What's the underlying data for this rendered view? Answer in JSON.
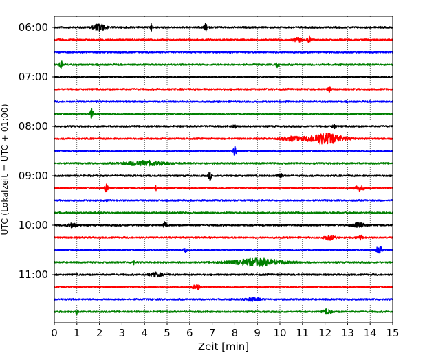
{
  "chart_data": {
    "type": "line",
    "title": "",
    "xlabel": "Zeit  [min]",
    "ylabel": "UTC (Lokalzeit = UTC + 01:00)",
    "xlim": [
      0,
      15
    ],
    "x_ticks": [
      "0",
      "1",
      "2",
      "3",
      "4",
      "5",
      "6",
      "7",
      "8",
      "9",
      "10",
      "11",
      "12",
      "13",
      "14",
      "15"
    ],
    "grid": "vertical-dotted",
    "y_tick_labels": [
      "06:00",
      "07:00",
      "08:00",
      "09:00",
      "10:00",
      "11:00"
    ],
    "traces_per_hour": 4,
    "trace_colors": [
      "#000000",
      "#ff0000",
      "#0000ff",
      "#008000"
    ],
    "series": [
      {
        "start": "06:00",
        "color": "#000000"
      },
      {
        "start": "06:15",
        "color": "#ff0000"
      },
      {
        "start": "06:30",
        "color": "#0000ff"
      },
      {
        "start": "06:45",
        "color": "#008000"
      },
      {
        "start": "07:00",
        "color": "#000000"
      },
      {
        "start": "07:15",
        "color": "#ff0000"
      },
      {
        "start": "07:30",
        "color": "#0000ff"
      },
      {
        "start": "07:45",
        "color": "#008000"
      },
      {
        "start": "08:00",
        "color": "#000000"
      },
      {
        "start": "08:15",
        "color": "#ff0000"
      },
      {
        "start": "08:30",
        "color": "#0000ff"
      },
      {
        "start": "08:45",
        "color": "#008000"
      },
      {
        "start": "09:00",
        "color": "#000000"
      },
      {
        "start": "09:15",
        "color": "#ff0000"
      },
      {
        "start": "09:30",
        "color": "#0000ff"
      },
      {
        "start": "09:45",
        "color": "#008000"
      },
      {
        "start": "10:00",
        "color": "#000000"
      },
      {
        "start": "10:15",
        "color": "#ff0000"
      },
      {
        "start": "10:30",
        "color": "#0000ff"
      },
      {
        "start": "10:45",
        "color": "#008000"
      },
      {
        "start": "11:00",
        "color": "#000000"
      },
      {
        "start": "11:15",
        "color": "#ff0000"
      },
      {
        "start": "11:30",
        "color": "#0000ff"
      },
      {
        "start": "11:45",
        "color": "#008000"
      }
    ],
    "events": [
      {
        "trace": 0,
        "minute": 2.0,
        "width": 0.5,
        "amp": 0.9
      },
      {
        "trace": 0,
        "minute": 4.3,
        "width": 0.05,
        "amp": 1.0
      },
      {
        "trace": 0,
        "minute": 6.7,
        "width": 0.1,
        "amp": 1.0
      },
      {
        "trace": 1,
        "minute": 11.3,
        "width": 0.1,
        "amp": 1.0
      },
      {
        "trace": 1,
        "minute": 10.8,
        "width": 0.3,
        "amp": 0.5
      },
      {
        "trace": 3,
        "minute": 0.3,
        "width": 0.1,
        "amp": 1.0
      },
      {
        "trace": 3,
        "minute": 9.9,
        "width": 0.1,
        "amp": 0.8
      },
      {
        "trace": 5,
        "minute": 12.2,
        "width": 0.1,
        "amp": 0.7
      },
      {
        "trace": 7,
        "minute": 1.65,
        "width": 0.1,
        "amp": 1.2
      },
      {
        "trace": 8,
        "minute": 8.0,
        "width": 0.1,
        "amp": 0.6
      },
      {
        "trace": 8,
        "minute": 12.4,
        "width": 0.1,
        "amp": 0.6
      },
      {
        "trace": 9,
        "minute": 12.0,
        "width": 1.5,
        "amp": 1.4
      },
      {
        "trace": 9,
        "minute": 10.5,
        "width": 0.8,
        "amp": 0.5
      },
      {
        "trace": 10,
        "minute": 8.0,
        "width": 0.1,
        "amp": 1.2
      },
      {
        "trace": 11,
        "minute": 4.0,
        "width": 1.6,
        "amp": 0.6
      },
      {
        "trace": 12,
        "minute": 6.9,
        "width": 0.1,
        "amp": 1.0
      },
      {
        "trace": 12,
        "minute": 10.0,
        "width": 0.2,
        "amp": 0.6
      },
      {
        "trace": 13,
        "minute": 2.3,
        "width": 0.1,
        "amp": 1.0
      },
      {
        "trace": 13,
        "minute": 13.5,
        "width": 0.4,
        "amp": 0.6
      },
      {
        "trace": 13,
        "minute": 4.5,
        "width": 0.05,
        "amp": 0.6
      },
      {
        "trace": 16,
        "minute": 0.8,
        "width": 0.4,
        "amp": 0.5
      },
      {
        "trace": 16,
        "minute": 4.9,
        "width": 0.1,
        "amp": 0.8
      },
      {
        "trace": 16,
        "minute": 13.5,
        "width": 0.5,
        "amp": 0.5
      },
      {
        "trace": 17,
        "minute": 12.2,
        "width": 0.4,
        "amp": 0.6
      },
      {
        "trace": 17,
        "minute": 13.6,
        "width": 0.1,
        "amp": 0.6
      },
      {
        "trace": 18,
        "minute": 5.8,
        "width": 0.1,
        "amp": 0.8
      },
      {
        "trace": 18,
        "minute": 14.4,
        "width": 0.2,
        "amp": 1.0
      },
      {
        "trace": 19,
        "minute": 9.0,
        "width": 2.2,
        "amp": 0.9
      },
      {
        "trace": 19,
        "minute": 3.5,
        "width": 0.05,
        "amp": 0.8
      },
      {
        "trace": 20,
        "minute": 4.5,
        "width": 0.5,
        "amp": 0.5
      },
      {
        "trace": 21,
        "minute": 6.3,
        "width": 0.3,
        "amp": 0.5
      },
      {
        "trace": 22,
        "minute": 8.8,
        "width": 0.6,
        "amp": 0.4
      },
      {
        "trace": 23,
        "minute": 12.1,
        "width": 0.3,
        "amp": 0.6
      },
      {
        "trace": 23,
        "minute": 1.0,
        "width": 0.05,
        "amp": 0.6
      }
    ]
  }
}
